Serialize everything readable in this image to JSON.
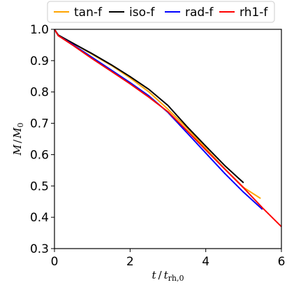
{
  "chart_data": {
    "type": "line",
    "xlabel": "t / t_rh,0",
    "ylabel": "M / M_0",
    "xlim": [
      0,
      6
    ],
    "ylim": [
      0.3,
      1.0
    ],
    "x_ticks": [
      0,
      2,
      4,
      6
    ],
    "y_ticks": [
      0.3,
      0.4,
      0.5,
      0.6,
      0.7,
      0.8,
      0.9,
      1.0
    ],
    "grid": false,
    "legend_position": "top",
    "series": [
      {
        "name": "tan-f",
        "color": "#ffa500",
        "x": [
          0,
          0.1,
          0.5,
          1.0,
          1.5,
          2.0,
          2.5,
          3.0,
          3.5,
          4.0,
          4.5,
          5.0,
          5.45
        ],
        "y": [
          1.0,
          0.98,
          0.955,
          0.92,
          0.885,
          0.845,
          0.8,
          0.745,
          0.685,
          0.62,
          0.555,
          0.495,
          0.46
        ]
      },
      {
        "name": "iso-f",
        "color": "#000000",
        "x": [
          0,
          0.1,
          0.5,
          1.0,
          1.5,
          2.0,
          2.5,
          3.0,
          3.5,
          4.0,
          4.5,
          5.0
        ],
        "y": [
          1.0,
          0.982,
          0.955,
          0.922,
          0.887,
          0.849,
          0.808,
          0.757,
          0.69,
          0.627,
          0.565,
          0.51
        ]
      },
      {
        "name": "rad-f",
        "color": "#0000ff",
        "x": [
          0,
          0.1,
          0.5,
          1.0,
          1.5,
          2.0,
          2.5,
          3.0,
          3.5,
          4.0,
          4.5,
          5.0,
          5.5
        ],
        "y": [
          1.0,
          0.98,
          0.95,
          0.91,
          0.87,
          0.83,
          0.787,
          0.735,
          0.67,
          0.605,
          0.54,
          0.48,
          0.425
        ]
      },
      {
        "name": "rh1-f",
        "color": "#ff0000",
        "x": [
          0,
          0.1,
          0.5,
          1.0,
          1.5,
          2.0,
          2.5,
          3.0,
          3.5,
          4.0,
          4.5,
          5.0,
          5.5,
          6.0
        ],
        "y": [
          1.0,
          0.98,
          0.948,
          0.906,
          0.866,
          0.826,
          0.783,
          0.737,
          0.677,
          0.615,
          0.554,
          0.494,
          0.43,
          0.37
        ]
      }
    ]
  }
}
